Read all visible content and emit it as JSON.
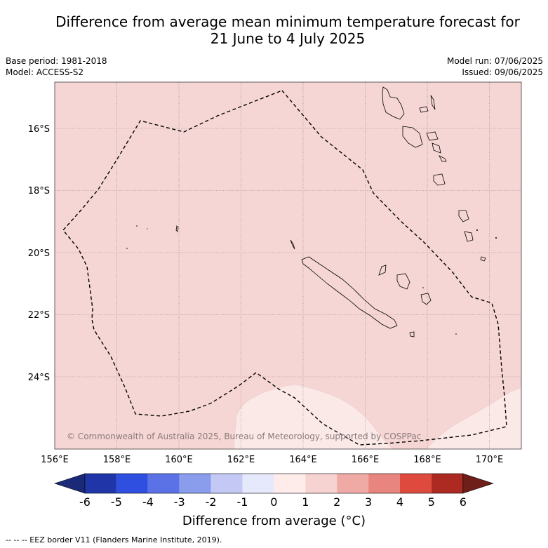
{
  "title_line1": "Difference from average mean minimum temperature forecast for",
  "title_line2": "21 June to 4 July 2025",
  "base_period": "Base period: 1981-2018",
  "model": "Model: ACCESS-S2",
  "model_run": "Model run: 07/06/2025",
  "issued": "Issued: 09/06/2025",
  "copyright": "© Commonwealth of Australia 2025, Bureau of Meteorology, supported by COSPPac",
  "lat_labels": [
    "16°S",
    "18°S",
    "20°S",
    "22°S",
    "24°S"
  ],
  "lon_labels": [
    "156°E",
    "158°E",
    "160°E",
    "162°E",
    "164°E",
    "166°E",
    "168°E",
    "170°E"
  ],
  "colorbar": {
    "ticks": [
      "-6",
      "-5",
      "-4",
      "-3",
      "-2",
      "-1",
      "0",
      "1",
      "2",
      "3",
      "4",
      "5",
      "6"
    ],
    "colors": [
      "#2035a8",
      "#2f4fe0",
      "#5a72e6",
      "#8a9cec",
      "#c3c9f4",
      "#e6e9fb",
      "#fdecea",
      "#f6d2d0",
      "#efaaa5",
      "#e8857e",
      "#de4b3e",
      "#ad2a23"
    ],
    "under_color": "#1b2a78",
    "over_color": "#6e1f1a"
  },
  "colorbar_label": "Difference from average (°C)",
  "footer": "--  --  -- EEZ border V11 (Flanders Marine Institute, 2019).",
  "map_colors": {
    "main_anomaly": "#f5d6d4",
    "low_anomaly": "#fbe9e8"
  }
}
